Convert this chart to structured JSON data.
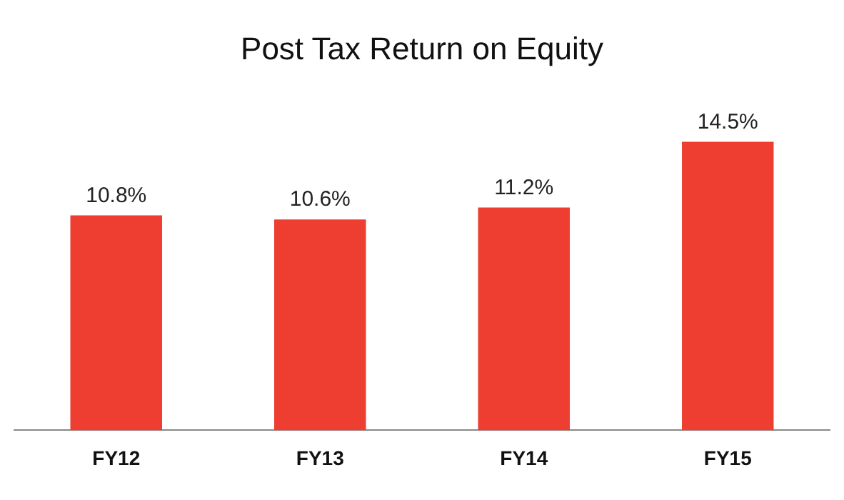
{
  "chart_data": {
    "type": "bar",
    "title": "Post Tax Return on Equity",
    "categories": [
      "FY12",
      "FY13",
      "FY14",
      "FY15"
    ],
    "values": [
      10.8,
      10.6,
      11.2,
      14.5
    ],
    "value_labels": [
      "10.8%",
      "10.6%",
      "11.2%",
      "14.5%"
    ],
    "color": "#ee3e32"
  }
}
